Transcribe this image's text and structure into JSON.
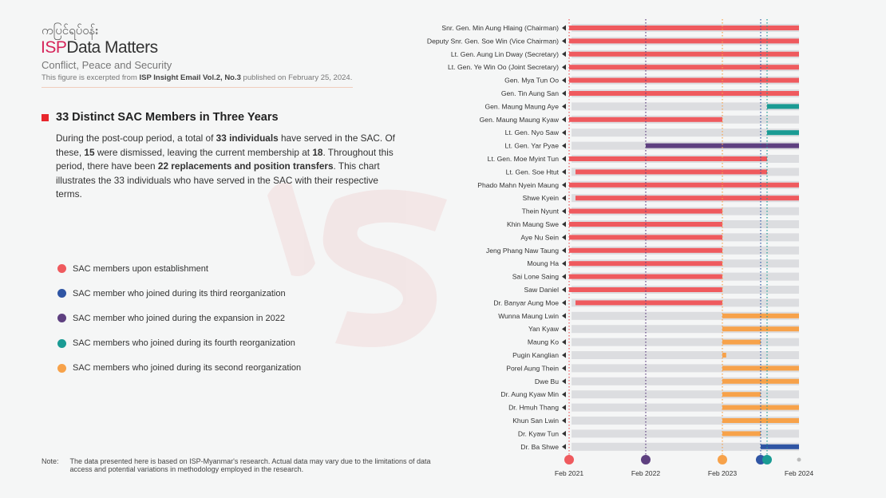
{
  "header": {
    "myanmar": "ကပြင်ရပ်ဝန်း",
    "brand_isp": "ISP",
    "brand_rest": "Data Matters",
    "subtitle": "Conflict, Peace and Security",
    "excerpt_pre": "This figure is excerpted from ",
    "excerpt_bold": "ISP Insight Email Vol.2, No.3",
    "excerpt_post": " published on February 25, 2024."
  },
  "section": {
    "title": "33 Distinct SAC Members in Three Years",
    "p1": "During the post-coup period, a total of ",
    "b1": "33 individuals",
    "p2": " have served in the SAC. Of these, ",
    "b2": "15",
    "p3": " were dismissed, leaving the current membership at ",
    "b3": "18",
    "p4": ". Throughout this period, there have been ",
    "b4": "22 replacements and position transfers",
    "p5": ". This chart illustrates the 33 individuals who have served in the SAC with their respective terms."
  },
  "watermark": "ISP",
  "note": {
    "label": "Note:",
    "text": "The data presented here is based on ISP-Myanmar's research. Actual data may vary due to the limitations of data access and potential variations in methodology employed in the research."
  },
  "colors": {
    "establishment": "#ef5a5e",
    "third": "#2f55a4",
    "expansion": "#5e4080",
    "fourth": "#1a9b94",
    "second": "#f7a24a",
    "track": "#dcdde0"
  },
  "chart_data": {
    "type": "gantt",
    "x_unit": "months since Feb 2021",
    "xlim": [
      0,
      36
    ],
    "ticks": [
      {
        "label": "Feb 2021",
        "value": 0
      },
      {
        "label": "Feb 2022",
        "value": 12
      },
      {
        "label": "Feb 2023",
        "value": 24
      },
      {
        "label": "Feb 2024",
        "value": 36
      }
    ],
    "events": [
      {
        "group": "establishment",
        "value": 0
      },
      {
        "group": "expansion",
        "value": 12
      },
      {
        "group": "second",
        "value": 24
      },
      {
        "group": "third",
        "value": 30
      },
      {
        "group": "fourth",
        "value": 31
      }
    ],
    "legend": [
      {
        "group": "establishment",
        "label": "SAC members upon establishment"
      },
      {
        "group": "third",
        "label": "SAC member who joined during its third reorganization"
      },
      {
        "group": "expansion",
        "label": "SAC member who joined during the expansion in 2022"
      },
      {
        "group": "fourth",
        "label": "SAC members who joined during its fourth reorganization"
      },
      {
        "group": "second",
        "label": "SAC members who joined during its second reorganization"
      }
    ],
    "rows": [
      {
        "name": "Snr. Gen. Min Aung Hlaing (Chairman)",
        "group": "establishment",
        "start": 0,
        "end": 36
      },
      {
        "name": "Deputy Snr. Gen. Soe Win (Vice Chairman)",
        "group": "establishment",
        "start": 0,
        "end": 36
      },
      {
        "name": "Lt. Gen. Aung Lin Dway (Secretary)",
        "group": "establishment",
        "start": 0,
        "end": 36
      },
      {
        "name": "Lt. Gen. Ye Win Oo (Joint Secretary)",
        "group": "establishment",
        "start": 0,
        "end": 36
      },
      {
        "name": "Gen. Mya Tun Oo",
        "group": "establishment",
        "start": 0,
        "end": 36
      },
      {
        "name": "Gen. Tin Aung San",
        "group": "establishment",
        "start": 0,
        "end": 36
      },
      {
        "name": "Gen. Maung Maung Aye",
        "group": "fourth",
        "start": 31,
        "end": 36
      },
      {
        "name": "Gen. Maung Maung Kyaw",
        "group": "establishment",
        "start": 0,
        "end": 24
      },
      {
        "name": "Lt. Gen. Nyo Saw",
        "group": "fourth",
        "start": 31,
        "end": 36
      },
      {
        "name": "Lt. Gen. Yar Pyae",
        "group": "expansion",
        "start": 12,
        "end": 36
      },
      {
        "name": "Lt. Gen. Moe Myint Tun",
        "group": "establishment",
        "start": 0,
        "end": 31
      },
      {
        "name": "Lt. Gen. Soe Htut",
        "group": "establishment",
        "start": 1,
        "end": 31
      },
      {
        "name": "Phado Mahn Nyein Maung",
        "group": "establishment",
        "start": 0,
        "end": 36
      },
      {
        "name": "Shwe Kyein",
        "group": "establishment",
        "start": 1,
        "end": 36
      },
      {
        "name": "Thein Nyunt",
        "group": "establishment",
        "start": 0,
        "end": 24
      },
      {
        "name": "Khin Maung Swe",
        "group": "establishment",
        "start": 0,
        "end": 24
      },
      {
        "name": "Aye Nu Sein",
        "group": "establishment",
        "start": 0,
        "end": 24
      },
      {
        "name": "Jeng Phang Naw Taung",
        "group": "establishment",
        "start": 0,
        "end": 24
      },
      {
        "name": "Moung Ha",
        "group": "establishment",
        "start": 0,
        "end": 24
      },
      {
        "name": "Sai Lone Saing",
        "group": "establishment",
        "start": 0,
        "end": 24
      },
      {
        "name": "Saw Daniel",
        "group": "establishment",
        "start": 0,
        "end": 24
      },
      {
        "name": "Dr. Banyar Aung Moe",
        "group": "establishment",
        "start": 1,
        "end": 24
      },
      {
        "name": "Wunna Maung Lwin",
        "group": "second",
        "start": 24,
        "end": 36
      },
      {
        "name": "Yan Kyaw",
        "group": "second",
        "start": 24,
        "end": 36
      },
      {
        "name": "Maung Ko",
        "group": "second",
        "start": 24,
        "end": 30
      },
      {
        "name": "Pugin Kanglian",
        "group": "second",
        "start": 24,
        "end": 24.6
      },
      {
        "name": "Porel Aung Thein",
        "group": "second",
        "start": 24,
        "end": 36
      },
      {
        "name": "Dwe Bu",
        "group": "second",
        "start": 24,
        "end": 36
      },
      {
        "name": "Dr. Aung Kyaw Min",
        "group": "second",
        "start": 24,
        "end": 30
      },
      {
        "name": "Dr. Hmuh Thang",
        "group": "second",
        "start": 24,
        "end": 36
      },
      {
        "name": "Khun San Lwin",
        "group": "second",
        "start": 24,
        "end": 36
      },
      {
        "name": "Dr. Kyaw Tun",
        "group": "second",
        "start": 24,
        "end": 30
      },
      {
        "name": "Dr. Ba Shwe",
        "group": "third",
        "start": 30,
        "end": 36
      }
    ]
  }
}
